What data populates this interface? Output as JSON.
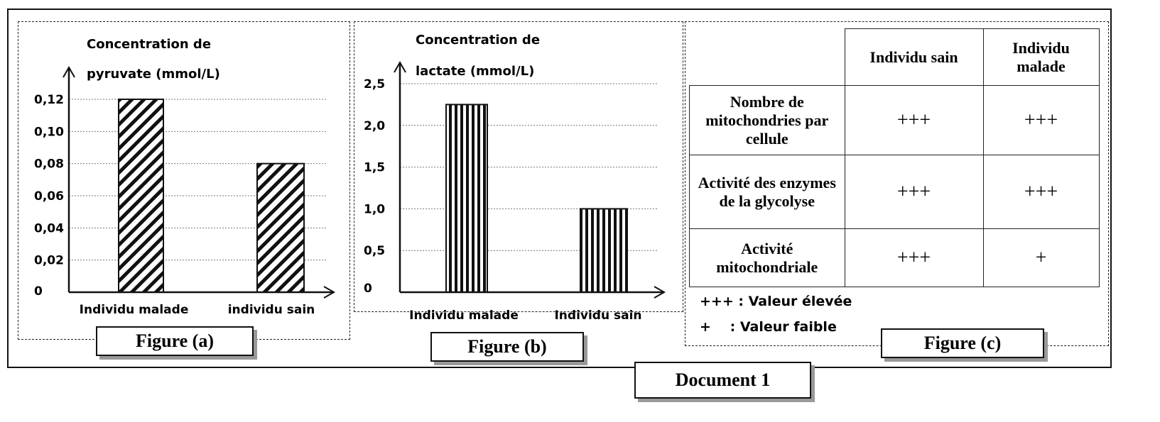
{
  "document_label": "Document 1",
  "chart_data": [
    {
      "type": "bar",
      "figure_label": "Figure (a)",
      "ylabel_line1": "Concentration de",
      "ylabel_line2": "pyruvate (mmol/L)",
      "categories": [
        "Individu malade",
        "individu sain"
      ],
      "values": [
        0.12,
        0.08
      ],
      "yticks": [
        "0",
        "0,02",
        "0,04",
        "0,06",
        "0,08",
        "0,10",
        "0,12"
      ],
      "ytick_values": [
        0,
        0.02,
        0.04,
        0.06,
        0.08,
        0.1,
        0.12
      ],
      "ylim": [
        0,
        0.12
      ],
      "grid": true,
      "fill_pattern": "diagonal-hatch"
    },
    {
      "type": "bar",
      "figure_label": "Figure (b)",
      "ylabel_line1": "Concentration de",
      "ylabel_line2": "lactate (mmol/L)",
      "categories": [
        "Individu malade",
        "Individu sain"
      ],
      "values": [
        2.25,
        1.0
      ],
      "yticks": [
        "0",
        "0,5",
        "1,0",
        "1,5",
        "2,0",
        "2,5"
      ],
      "ytick_values": [
        0,
        0.5,
        1.0,
        1.5,
        2.0,
        2.5
      ],
      "ylim": [
        0,
        2.5
      ],
      "grid": true,
      "fill_pattern": "vertical-stripes"
    }
  ],
  "figure_c": {
    "figure_label": "Figure (c)",
    "columns": [
      "Individu sain",
      "Individu malade"
    ],
    "rows": [
      {
        "label": "Nombre de mitochondries par cellule",
        "values": [
          "+++",
          "+++"
        ]
      },
      {
        "label": "Activité des enzymes de la glycolyse",
        "values": [
          "+++",
          "+++"
        ]
      },
      {
        "label": "Activité mitochondriale",
        "values": [
          "+++",
          "+"
        ]
      }
    ],
    "legend": [
      {
        "symbol": "+++",
        "text": ": Valeur élevée"
      },
      {
        "symbol": "+",
        "text": ": Valeur faible"
      }
    ]
  }
}
